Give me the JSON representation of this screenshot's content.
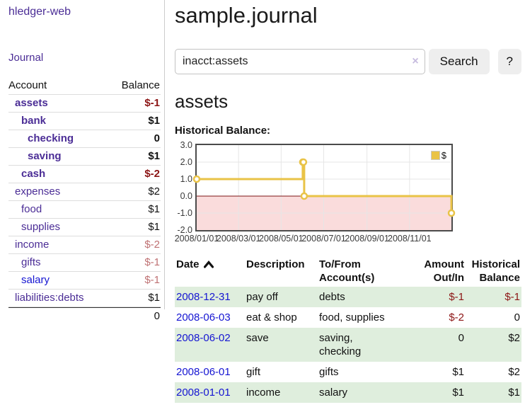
{
  "app": {
    "title": "hledger-web"
  },
  "sidebar": {
    "nav": {
      "journal": "Journal"
    },
    "accounts": {
      "headers": {
        "account": "Account",
        "balance": "Balance"
      },
      "rows": [
        {
          "name": "assets",
          "indent": 1,
          "balance": "$-1"
        },
        {
          "name": "bank",
          "indent": 2,
          "balance": "$1"
        },
        {
          "name": "checking",
          "indent": 3,
          "balance": "0"
        },
        {
          "name": "saving",
          "indent": 3,
          "balance": "$1"
        },
        {
          "name": "cash",
          "indent": 2,
          "balance": "$-2"
        },
        {
          "name": "expenses",
          "indent": 1,
          "balance": "$2"
        },
        {
          "name": "food",
          "indent": 2,
          "balance": "$1"
        },
        {
          "name": "supplies",
          "indent": 2,
          "balance": "$1"
        },
        {
          "name": "income",
          "indent": 1,
          "balance": "$-2"
        },
        {
          "name": "gifts",
          "indent": 2,
          "balance": "$-1"
        },
        {
          "name": "salary",
          "indent": 2,
          "balance": "$-1"
        },
        {
          "name": "liabilities:debts",
          "indent": 1,
          "balance": "$1"
        }
      ],
      "total": "0"
    }
  },
  "main": {
    "title": "sample.journal",
    "search": {
      "value": "inacct:assets",
      "clear_icon": "×",
      "button_label": "Search",
      "help_label": "?"
    },
    "account_heading": "assets",
    "section_heading": "Historical Balance:"
  },
  "chart_data": {
    "type": "line",
    "step": true,
    "title": "Historical Balance",
    "legend": "$",
    "legend_position": "top-right",
    "grid": true,
    "ylim": [
      -2,
      3
    ],
    "y_ticks": [
      "3.0",
      "2.0",
      "1.0",
      "0.0",
      "-1.0",
      "-2.0"
    ],
    "x_ticks": [
      "2008/01/01",
      "2008/03/01",
      "2008/05/01",
      "2008/07/01",
      "2008/09/01",
      "2008/11/01"
    ],
    "x_range": [
      "2008-01-01",
      "2008-12-31"
    ],
    "series": [
      {
        "name": "$",
        "color": "#e9c347",
        "points": [
          [
            "2008-01-01",
            1
          ],
          [
            "2008-06-01",
            2
          ],
          [
            "2008-06-02",
            2
          ],
          [
            "2008-06-03",
            0
          ],
          [
            "2008-12-31",
            -1
          ]
        ]
      }
    ],
    "negative_region_color": "#fadcdc",
    "zero_line_color": "#7d1414"
  },
  "register": {
    "columns": [
      "Date",
      "Description",
      "To/From\nAccount(s)",
      "Amount\nOut/In",
      "Historical\nBalance"
    ],
    "rows": [
      {
        "date": "2008-12-31",
        "description": "pay off",
        "accounts": [
          "debts"
        ],
        "amount": "$-1",
        "balance": "$-1"
      },
      {
        "date": "2008-06-03",
        "description": "eat & shop",
        "accounts": [
          "food, supplies"
        ],
        "amount": "$-2",
        "balance": "0"
      },
      {
        "date": "2008-06-02",
        "description": "save",
        "accounts": [
          "saving,",
          "checking"
        ],
        "amount": "0",
        "balance": "$2"
      },
      {
        "date": "2008-06-01",
        "description": "gift",
        "accounts": [
          "gifts"
        ],
        "amount": "$1",
        "balance": "$2"
      },
      {
        "date": "2008-01-01",
        "description": "income",
        "accounts": [
          "salary"
        ],
        "amount": "$1",
        "balance": "$1"
      }
    ]
  },
  "colors": {
    "link_purple": "#4b2d96",
    "link_blue": "#1515d2",
    "negative_strong": "#8c1515",
    "negative_soft": "#bf7173",
    "row_stripe_green": "#dfeedd",
    "chart_gold": "#e9c347",
    "chart_negative_fill": "#fadcdc",
    "chart_zero_line": "#7d1414"
  }
}
